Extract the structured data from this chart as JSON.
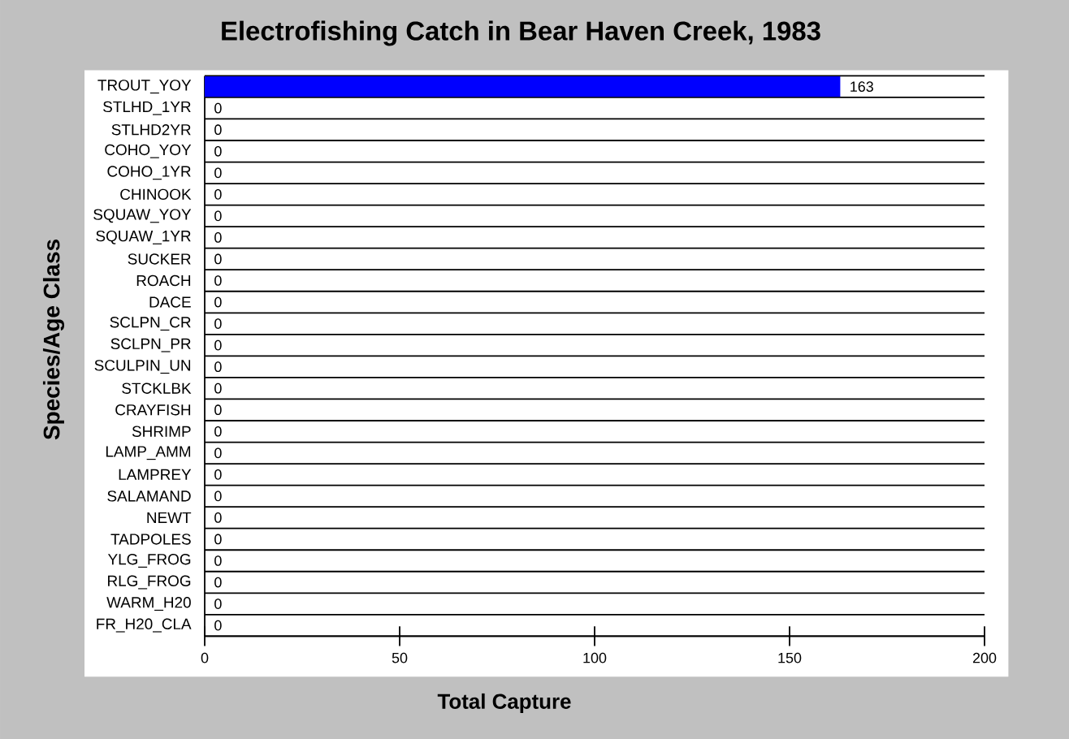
{
  "chart_data": {
    "type": "bar",
    "orientation": "horizontal",
    "title": "Electrofishing Catch in Bear Haven Creek, 1983",
    "xlabel": "Total Capture",
    "ylabel": "Species/Age Class",
    "categories": [
      "TROUT_YOY",
      "STLHD_1YR",
      "STLHD2YR",
      "COHO_YOY",
      "COHO_1YR",
      "CHINOOK",
      "SQUAW_YOY",
      "SQUAW_1YR",
      "SUCKER",
      "ROACH",
      "DACE",
      "SCLPN_CR",
      "SCLPN_PR",
      "SCULPIN_UN",
      "STCKLBK",
      "CRAYFISH",
      "SHRIMP",
      "LAMP_AMM",
      "LAMPREY",
      "SALAMAND",
      "NEWT",
      "TADPOLES",
      "YLG_FROG",
      "RLG_FROG",
      "WARM_H20",
      "FR_H20_CLA"
    ],
    "values": [
      163,
      0,
      0,
      0,
      0,
      0,
      0,
      0,
      0,
      0,
      0,
      0,
      0,
      0,
      0,
      0,
      0,
      0,
      0,
      0,
      0,
      0,
      0,
      0,
      0,
      0
    ],
    "color": "#0000ff",
    "xlim": [
      0,
      200
    ],
    "xticks": [
      0,
      50,
      100,
      150,
      200
    ],
    "grid": "y",
    "data_labels": true
  }
}
